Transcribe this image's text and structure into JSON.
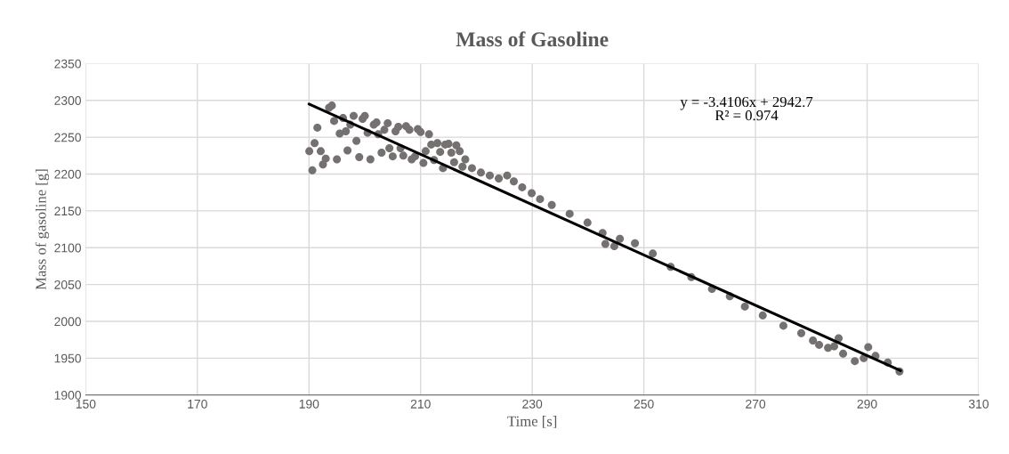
{
  "chart_data": {
    "type": "scatter",
    "title": "Mass of Gasoline",
    "xlabel": "Time [s]",
    "ylabel": "Mass of gasoline [g]",
    "xlim": [
      150,
      310
    ],
    "xticks": [
      150,
      170,
      190,
      210,
      230,
      250,
      270,
      290,
      310
    ],
    "ylim": [
      1900,
      2350
    ],
    "yticks": [
      1900,
      1950,
      2000,
      2050,
      2100,
      2150,
      2200,
      2250,
      2300,
      2350
    ],
    "grid": true,
    "annotations": [
      "y = -3.4106x + 2942.7\nR² = 0.974"
    ],
    "series": [
      {
        "color": "#767171",
        "marker": "circle",
        "x": [
          190.05,
          190.6,
          191,
          191.5,
          192.1,
          192.5,
          193.0,
          193.6,
          194.1,
          194.5,
          195,
          195.5,
          196.1,
          196.6,
          196.9,
          197.4,
          198.0,
          198.5,
          199.0,
          199.6,
          200,
          200.5,
          201.0,
          201.6,
          202.1,
          202.4,
          203.0,
          203.5,
          204.1,
          204.4,
          205.0,
          205.5,
          206.0,
          206.4,
          206.9,
          207.4,
          208.0,
          208.4,
          209.0,
          209.5,
          210.0,
          210.5,
          210.9,
          211.5,
          211.9,
          212.4,
          213.0,
          213.5,
          214.0,
          214.4,
          215.0,
          215.5,
          216.0,
          216.4,
          217.0,
          217.5,
          218.0,
          219.2,
          220.8,
          222.4,
          224,
          225.5,
          226.7,
          228.2,
          229.9,
          231.4,
          233.5,
          236.7,
          239.9,
          242.6,
          243.1,
          244.7,
          245.7,
          248.4,
          251.6,
          254.8,
          258.5,
          262.2,
          265.4,
          268.1,
          271.3,
          275.0,
          278.2,
          280.3,
          281.4,
          283.0,
          284.1,
          284.9,
          285.7,
          287.8,
          289.4,
          290.2,
          291.5,
          293.7,
          295.8
        ],
        "values": [
          2231,
          2205,
          2242,
          2263,
          2231,
          2213,
          2221,
          2290,
          2293,
          2272,
          2220,
          2255,
          2276,
          2258,
          2232,
          2267,
          2279,
          2245,
          2223,
          2275,
          2279,
          2256,
          2220,
          2267,
          2270,
          2254,
          2229,
          2260,
          2269,
          2235,
          2224,
          2258,
          2264,
          2235,
          2225,
          2265,
          2260,
          2220,
          2224,
          2261,
          2257,
          2215,
          2231,
          2254,
          2240,
          2219,
          2242,
          2230,
          2208,
          2240,
          2241,
          2229,
          2216,
          2239,
          2231,
          2210,
          2220,
          2208,
          2202,
          2198,
          2194,
          2198,
          2190,
          2182,
          2174,
          2166,
          2158,
          2146,
          2134,
          2120,
          2105,
          2102,
          2112,
          2106,
          2092,
          2074,
          2060,
          2044,
          2034,
          2020,
          2008,
          1994,
          1984,
          1974,
          1968,
          1964,
          1966,
          1977,
          1956,
          1946,
          1950,
          1965,
          1953,
          1944,
          1932
        ]
      },
      {
        "type": "line",
        "color": "#000000",
        "marker": "none",
        "x": [
          190,
          296
        ],
        "values": [
          2295,
          1933
        ]
      }
    ]
  }
}
